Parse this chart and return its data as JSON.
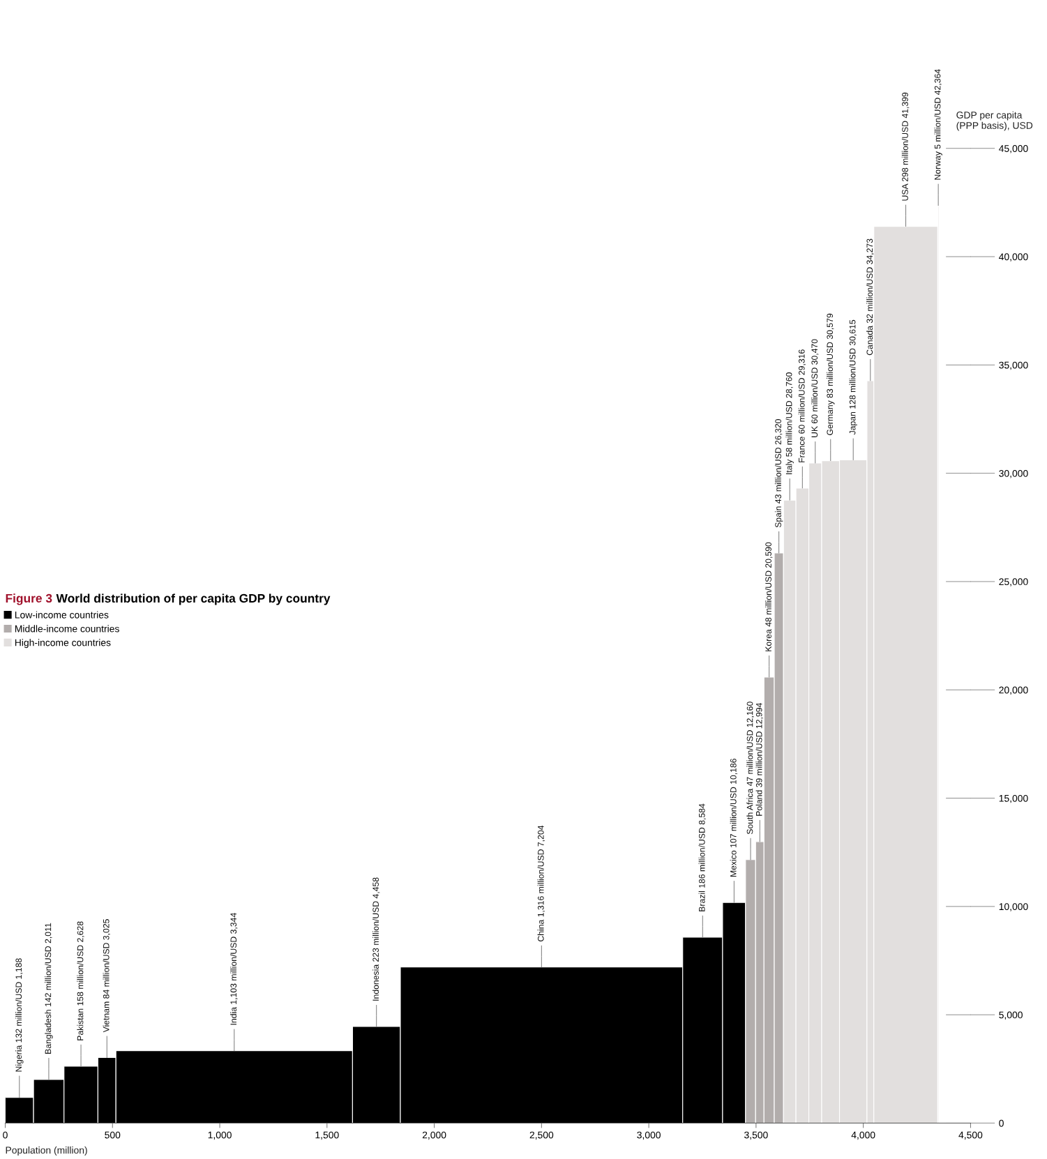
{
  "chart_data": {
    "type": "histogram",
    "title": "World distribution of per capita GDP by country",
    "annotations": [
      "Figure 3",
      "Population (million)"
    ],
    "ylabel": "GDP per capita\n(PPP basis), USD",
    "bins": [
      0,
      132,
      274,
      432,
      516,
      1619,
      1842,
      3158,
      3344,
      3451,
      3498,
      3537,
      3585,
      3628,
      3686,
      3746,
      3806,
      3889,
      4017,
      4049,
      4347,
      4352
    ],
    "xlim": [
      0,
      4500
    ],
    "xticks": [
      0,
      500,
      {
        "value": 1000,
        "label": "1,000"
      },
      {
        "value": 1500,
        "label": "1,500"
      },
      {
        "value": 2000,
        "label": "2,000"
      },
      {
        "value": 2500,
        "label": "2,500"
      },
      {
        "value": 3000,
        "label": "3,000"
      },
      {
        "value": 3500,
        "label": "3,500"
      },
      {
        "value": 4000,
        "label": "4,000"
      },
      {
        "value": 4500,
        "label": "4,500"
      }
    ],
    "ylim": [
      0,
      45000
    ],
    "yticks": [
      0,
      {
        "value": 5000,
        "label": "5,000"
      },
      {
        "value": 10000,
        "label": "10,000"
      },
      {
        "value": 15000,
        "label": "15,000"
      },
      {
        "value": 20000,
        "label": "20,000"
      },
      {
        "value": 25000,
        "label": "25,000"
      },
      {
        "value": 30000,
        "label": "30,000"
      },
      {
        "value": 35000,
        "label": "35,000"
      },
      {
        "value": 40000,
        "label": "40,000"
      },
      {
        "value": 45000,
        "label": "45,000"
      }
    ],
    "grid": "y",
    "legend": "left",
    "series": [
      {
        "name": "Low-income countries",
        "color": "#000000",
        "values": [
          1188,
          2011,
          2628,
          3025,
          3344,
          4458,
          7204,
          8584,
          10186,
          null,
          null,
          null,
          null,
          null,
          null,
          null,
          null,
          null,
          null,
          null,
          null
        ],
        "value_labels": [
          "Nigeria 132 million/USD 1,188",
          "Bangladesh 142 million/USD 2,011",
          "Pakistan 158 million/USD 2,628",
          "Vietnam 84 million/USD 3,025",
          "India 1,103 million/USD 3,344",
          "Indonesia 223 million/USD 4,458",
          "China 1,316 million/USD 7,204",
          "Brazil 186 million/USD 8,584",
          "Mexico 107 million/USD 10,186",
          null,
          null,
          null,
          null,
          null,
          null,
          null,
          null,
          null,
          null,
          null,
          null
        ]
      },
      {
        "name": "Middle-income countries",
        "color": "#b2adac",
        "values": [
          null,
          null,
          null,
          null,
          null,
          null,
          null,
          null,
          null,
          12160,
          12994,
          20590,
          26320,
          null,
          null,
          null,
          null,
          null,
          null,
          null,
          null
        ],
        "value_labels": [
          null,
          null,
          null,
          null,
          null,
          null,
          null,
          null,
          null,
          "South Africa 47 million/USD 12,160",
          "Poland 39 million/USD 12,994",
          "Korea 48 million/USD 20,590",
          "Spain 43 million/USD 26,320",
          null,
          null,
          null,
          null,
          null,
          null,
          null,
          null
        ]
      },
      {
        "name": "High-income countries",
        "color": "#e2dfde",
        "values": [
          null,
          null,
          null,
          null,
          null,
          null,
          null,
          null,
          null,
          null,
          null,
          null,
          null,
          28760,
          29316,
          30470,
          30579,
          30615,
          34273,
          41399,
          42364
        ],
        "value_labels": [
          null,
          null,
          null,
          null,
          null,
          null,
          null,
          null,
          null,
          null,
          null,
          null,
          null,
          "Italy 58 million/USD 28,760",
          "France 60 million/USD 29,316",
          "UK 60 million/USD 30,470",
          "Germany 83 million/USD 30,579",
          "Japan 128 million/USD 30,615",
          "Canada 32 million/USD 34,273",
          "USA 298 million/USD 41,399",
          "Norway 5 million/USD 42,364"
        ]
      }
    ]
  }
}
